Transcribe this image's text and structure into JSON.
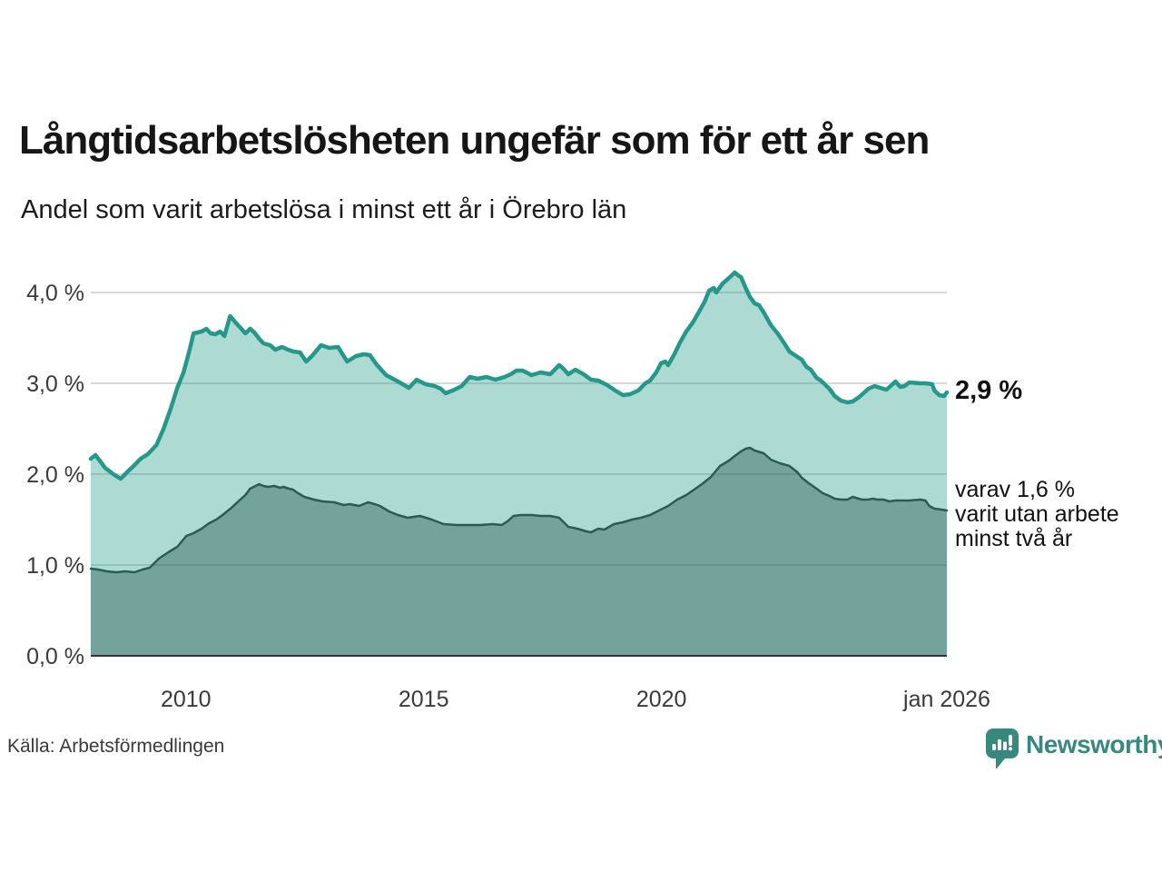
{
  "chart_data": {
    "type": "area",
    "title": "Långtidsarbetslösheten ungefär som för ett år sen",
    "subtitle": "Andel som varit arbetslösa i minst ett år i Örebro län",
    "source": "Källa: Arbetsförmedlingen",
    "xlim": [
      2008,
      2026
    ],
    "ylim": [
      0,
      4.4
    ],
    "grid": true,
    "legend_position": "none",
    "x_ticks": [
      {
        "x": 2010,
        "label": "2010"
      },
      {
        "x": 2015,
        "label": "2015"
      },
      {
        "x": 2020,
        "label": "2020"
      },
      {
        "x": 2026,
        "label": "jan 2026"
      }
    ],
    "y_ticks": [
      {
        "y": 0,
        "label": "0,0 %"
      },
      {
        "y": 1,
        "label": "1,0 %"
      },
      {
        "y": 2,
        "label": "2,0 %"
      },
      {
        "y": 3,
        "label": "3,0 %"
      },
      {
        "y": 4,
        "label": "4,0 %"
      }
    ],
    "series": [
      {
        "name": "Andel som varit arbetslösa i minst ett år",
        "color": "#26988a",
        "fill": "rgba(42,157,143,0.38)",
        "line_width": 4.5,
        "latest_value": 2.9,
        "points": [
          [
            2008.0,
            2.17
          ],
          [
            2008.1,
            2.21
          ],
          [
            2008.3,
            2.07
          ],
          [
            2008.5,
            1.99
          ],
          [
            2008.63,
            1.95
          ],
          [
            2008.8,
            2.04
          ],
          [
            2008.92,
            2.1
          ],
          [
            2009.05,
            2.17
          ],
          [
            2009.2,
            2.22
          ],
          [
            2009.38,
            2.32
          ],
          [
            2009.53,
            2.5
          ],
          [
            2009.68,
            2.72
          ],
          [
            2009.82,
            2.95
          ],
          [
            2009.95,
            3.12
          ],
          [
            2010.07,
            3.35
          ],
          [
            2010.16,
            3.55
          ],
          [
            2010.33,
            3.57
          ],
          [
            2010.43,
            3.6
          ],
          [
            2010.52,
            3.55
          ],
          [
            2010.62,
            3.54
          ],
          [
            2010.72,
            3.57
          ],
          [
            2010.81,
            3.52
          ],
          [
            2010.93,
            3.74
          ],
          [
            2011.06,
            3.66
          ],
          [
            2011.15,
            3.61
          ],
          [
            2011.25,
            3.55
          ],
          [
            2011.35,
            3.6
          ],
          [
            2011.44,
            3.56
          ],
          [
            2011.54,
            3.49
          ],
          [
            2011.63,
            3.44
          ],
          [
            2011.77,
            3.42
          ],
          [
            2011.88,
            3.37
          ],
          [
            2012.02,
            3.4
          ],
          [
            2012.15,
            3.37
          ],
          [
            2012.26,
            3.35
          ],
          [
            2012.4,
            3.34
          ],
          [
            2012.53,
            3.24
          ],
          [
            2012.65,
            3.3
          ],
          [
            2012.84,
            3.42
          ],
          [
            2013.01,
            3.39
          ],
          [
            2013.2,
            3.4
          ],
          [
            2013.39,
            3.24
          ],
          [
            2013.58,
            3.3
          ],
          [
            2013.74,
            3.32
          ],
          [
            2013.87,
            3.31
          ],
          [
            2014.02,
            3.2
          ],
          [
            2014.21,
            3.09
          ],
          [
            2014.46,
            3.02
          ],
          [
            2014.69,
            2.95
          ],
          [
            2014.85,
            3.04
          ],
          [
            2015.04,
            2.99
          ],
          [
            2015.23,
            2.97
          ],
          [
            2015.36,
            2.94
          ],
          [
            2015.46,
            2.89
          ],
          [
            2015.65,
            2.93
          ],
          [
            2015.8,
            2.97
          ],
          [
            2015.97,
            3.07
          ],
          [
            2016.13,
            3.05
          ],
          [
            2016.32,
            3.07
          ],
          [
            2016.51,
            3.04
          ],
          [
            2016.7,
            3.07
          ],
          [
            2016.83,
            3.1
          ],
          [
            2016.95,
            3.14
          ],
          [
            2017.08,
            3.14
          ],
          [
            2017.27,
            3.09
          ],
          [
            2017.46,
            3.12
          ],
          [
            2017.66,
            3.1
          ],
          [
            2017.85,
            3.2
          ],
          [
            2017.94,
            3.16
          ],
          [
            2018.04,
            3.1
          ],
          [
            2018.19,
            3.15
          ],
          [
            2018.36,
            3.1
          ],
          [
            2018.52,
            3.04
          ],
          [
            2018.67,
            3.03
          ],
          [
            2018.86,
            2.98
          ],
          [
            2019.03,
            2.92
          ],
          [
            2019.19,
            2.87
          ],
          [
            2019.34,
            2.88
          ],
          [
            2019.51,
            2.92
          ],
          [
            2019.66,
            3.0
          ],
          [
            2019.76,
            3.03
          ],
          [
            2019.89,
            3.12
          ],
          [
            2019.99,
            3.22
          ],
          [
            2020.08,
            3.24
          ],
          [
            2020.14,
            3.2
          ],
          [
            2020.27,
            3.32
          ],
          [
            2020.39,
            3.45
          ],
          [
            2020.52,
            3.57
          ],
          [
            2020.66,
            3.67
          ],
          [
            2020.77,
            3.77
          ],
          [
            2020.91,
            3.9
          ],
          [
            2021.0,
            4.02
          ],
          [
            2021.1,
            4.05
          ],
          [
            2021.15,
            4.0
          ],
          [
            2021.29,
            4.1
          ],
          [
            2021.42,
            4.16
          ],
          [
            2021.54,
            4.22
          ],
          [
            2021.63,
            4.18
          ],
          [
            2021.67,
            4.17
          ],
          [
            2021.77,
            4.05
          ],
          [
            2021.86,
            3.95
          ],
          [
            2021.96,
            3.88
          ],
          [
            2022.05,
            3.86
          ],
          [
            2022.15,
            3.78
          ],
          [
            2022.3,
            3.64
          ],
          [
            2022.44,
            3.55
          ],
          [
            2022.57,
            3.45
          ],
          [
            2022.69,
            3.35
          ],
          [
            2022.86,
            3.29
          ],
          [
            2022.95,
            3.26
          ],
          [
            2023.05,
            3.18
          ],
          [
            2023.14,
            3.15
          ],
          [
            2023.26,
            3.06
          ],
          [
            2023.35,
            3.03
          ],
          [
            2023.53,
            2.94
          ],
          [
            2023.64,
            2.86
          ],
          [
            2023.77,
            2.81
          ],
          [
            2023.91,
            2.79
          ],
          [
            2024.02,
            2.8
          ],
          [
            2024.16,
            2.85
          ],
          [
            2024.35,
            2.94
          ],
          [
            2024.48,
            2.97
          ],
          [
            2024.6,
            2.95
          ],
          [
            2024.73,
            2.93
          ],
          [
            2024.86,
            2.99
          ],
          [
            2024.92,
            3.02
          ],
          [
            2025.02,
            2.96
          ],
          [
            2025.11,
            2.97
          ],
          [
            2025.21,
            3.01
          ],
          [
            2025.44,
            3.0
          ],
          [
            2025.55,
            3.0
          ],
          [
            2025.69,
            2.99
          ],
          [
            2025.74,
            2.92
          ],
          [
            2025.84,
            2.87
          ],
          [
            2025.94,
            2.86
          ],
          [
            2026.0,
            2.9
          ]
        ]
      },
      {
        "name": "varav utan arbete minst två år",
        "color": "#2b5c53",
        "fill": "rgba(47,95,86,0.45)",
        "line_width": 2.5,
        "latest_value": 1.6,
        "points": [
          [
            2008.0,
            0.96
          ],
          [
            2008.15,
            0.95
          ],
          [
            2008.34,
            0.93
          ],
          [
            2008.54,
            0.92
          ],
          [
            2008.73,
            0.93
          ],
          [
            2008.92,
            0.92
          ],
          [
            2009.09,
            0.95
          ],
          [
            2009.24,
            0.97
          ],
          [
            2009.43,
            1.07
          ],
          [
            2009.63,
            1.14
          ],
          [
            2009.82,
            1.2
          ],
          [
            2010.01,
            1.32
          ],
          [
            2010.16,
            1.35
          ],
          [
            2010.33,
            1.4
          ],
          [
            2010.49,
            1.46
          ],
          [
            2010.64,
            1.5
          ],
          [
            2010.77,
            1.55
          ],
          [
            2010.96,
            1.63
          ],
          [
            2011.1,
            1.7
          ],
          [
            2011.25,
            1.77
          ],
          [
            2011.35,
            1.84
          ],
          [
            2011.54,
            1.89
          ],
          [
            2011.63,
            1.87
          ],
          [
            2011.73,
            1.86
          ],
          [
            2011.86,
            1.87
          ],
          [
            2011.98,
            1.85
          ],
          [
            2012.05,
            1.86
          ],
          [
            2012.17,
            1.84
          ],
          [
            2012.25,
            1.83
          ],
          [
            2012.36,
            1.79
          ],
          [
            2012.49,
            1.75
          ],
          [
            2012.69,
            1.72
          ],
          [
            2012.88,
            1.7
          ],
          [
            2013.12,
            1.69
          ],
          [
            2013.32,
            1.66
          ],
          [
            2013.45,
            1.67
          ],
          [
            2013.64,
            1.65
          ],
          [
            2013.83,
            1.69
          ],
          [
            2013.97,
            1.67
          ],
          [
            2014.08,
            1.65
          ],
          [
            2014.27,
            1.59
          ],
          [
            2014.46,
            1.55
          ],
          [
            2014.66,
            1.52
          ],
          [
            2014.92,
            1.54
          ],
          [
            2015.17,
            1.5
          ],
          [
            2015.42,
            1.45
          ],
          [
            2015.69,
            1.44
          ],
          [
            2015.94,
            1.44
          ],
          [
            2016.19,
            1.44
          ],
          [
            2016.45,
            1.45
          ],
          [
            2016.64,
            1.44
          ],
          [
            2016.76,
            1.48
          ],
          [
            2016.89,
            1.54
          ],
          [
            2017.04,
            1.55
          ],
          [
            2017.27,
            1.55
          ],
          [
            2017.46,
            1.54
          ],
          [
            2017.66,
            1.54
          ],
          [
            2017.85,
            1.52
          ],
          [
            2018.04,
            1.42
          ],
          [
            2018.23,
            1.4
          ],
          [
            2018.42,
            1.37
          ],
          [
            2018.52,
            1.36
          ],
          [
            2018.67,
            1.4
          ],
          [
            2018.8,
            1.39
          ],
          [
            2019.0,
            1.45
          ],
          [
            2019.19,
            1.47
          ],
          [
            2019.38,
            1.5
          ],
          [
            2019.57,
            1.52
          ],
          [
            2019.76,
            1.55
          ],
          [
            2019.95,
            1.6
          ],
          [
            2020.14,
            1.65
          ],
          [
            2020.33,
            1.72
          ],
          [
            2020.52,
            1.77
          ],
          [
            2020.66,
            1.82
          ],
          [
            2020.85,
            1.89
          ],
          [
            2021.04,
            1.97
          ],
          [
            2021.23,
            2.09
          ],
          [
            2021.42,
            2.15
          ],
          [
            2021.54,
            2.2
          ],
          [
            2021.67,
            2.25
          ],
          [
            2021.77,
            2.28
          ],
          [
            2021.86,
            2.29
          ],
          [
            2021.96,
            2.26
          ],
          [
            2022.15,
            2.23
          ],
          [
            2022.3,
            2.16
          ],
          [
            2022.49,
            2.12
          ],
          [
            2022.69,
            2.09
          ],
          [
            2022.86,
            2.02
          ],
          [
            2022.95,
            1.96
          ],
          [
            2023.07,
            1.91
          ],
          [
            2023.26,
            1.84
          ],
          [
            2023.39,
            1.79
          ],
          [
            2023.53,
            1.76
          ],
          [
            2023.64,
            1.73
          ],
          [
            2023.77,
            1.72
          ],
          [
            2023.91,
            1.72
          ],
          [
            2024.02,
            1.75
          ],
          [
            2024.21,
            1.72
          ],
          [
            2024.35,
            1.72
          ],
          [
            2024.44,
            1.73
          ],
          [
            2024.54,
            1.72
          ],
          [
            2024.67,
            1.72
          ],
          [
            2024.79,
            1.7
          ],
          [
            2024.92,
            1.71
          ],
          [
            2025.06,
            1.71
          ],
          [
            2025.21,
            1.71
          ],
          [
            2025.44,
            1.72
          ],
          [
            2025.55,
            1.71
          ],
          [
            2025.63,
            1.65
          ],
          [
            2025.74,
            1.62
          ],
          [
            2025.88,
            1.61
          ],
          [
            2026.0,
            1.6
          ]
        ]
      }
    ]
  },
  "annotations": {
    "latest_value_label": "2,9 %",
    "secondary_note_lines": [
      "varav 1,6 %",
      "varit utan arbete",
      "minst två år"
    ]
  },
  "footer": {
    "source": "Källa: Arbetsförmedlingen",
    "brand_name": "Newsworthy"
  },
  "colors": {
    "accent_teal": "#26988a",
    "dark_green": "#2b5c53",
    "gridline": "#d9d9d9",
    "axis_line": "#333333",
    "brand": "#37897e",
    "text": "#161616"
  }
}
